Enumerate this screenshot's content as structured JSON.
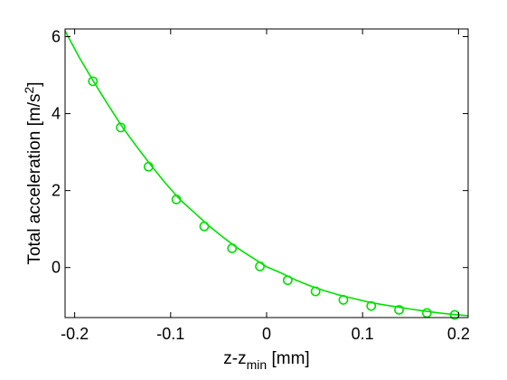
{
  "chart_data": {
    "type": "line",
    "title": "",
    "xlabel": {
      "main": "z-z",
      "subscript": "min",
      "suffix": " [mm]"
    },
    "ylabel": {
      "prefix": "Total acceleration [m/s",
      "superscript": "2",
      "suffix": "]"
    },
    "xlim": [
      -0.21,
      0.21
    ],
    "ylim": [
      -1.3,
      6.2
    ],
    "x_ticks": [
      {
        "value": -0.2,
        "label": "-0.2"
      },
      {
        "value": -0.1,
        "label": "-0.1"
      },
      {
        "value": 0,
        "label": "0"
      },
      {
        "value": 0.1,
        "label": "0.1"
      },
      {
        "value": 0.2,
        "label": "0.2"
      }
    ],
    "y_ticks": [
      {
        "value": 0,
        "label": "0"
      },
      {
        "value": 2,
        "label": "2"
      },
      {
        "value": 4,
        "label": "4"
      },
      {
        "value": 6,
        "label": "6"
      }
    ],
    "grid": false,
    "legend": "none",
    "series": [
      {
        "style": "line",
        "color": "#00e000",
        "x": [
          -0.21,
          -0.195,
          -0.18,
          -0.165,
          -0.15,
          -0.135,
          -0.12,
          -0.105,
          -0.09,
          -0.075,
          -0.06,
          -0.045,
          -0.03,
          -0.015,
          0.0,
          0.015,
          0.03,
          0.045,
          0.06,
          0.075,
          0.09,
          0.105,
          0.12,
          0.135,
          0.15,
          0.165,
          0.18,
          0.195,
          0.21
        ],
        "y": [
          6.15,
          5.45,
          4.82,
          4.22,
          3.64,
          3.13,
          2.64,
          2.18,
          1.76,
          1.42,
          1.08,
          0.78,
          0.5,
          0.26,
          0.02,
          -0.14,
          -0.32,
          -0.47,
          -0.6,
          -0.71,
          -0.8,
          -0.89,
          -0.96,
          -1.02,
          -1.08,
          -1.13,
          -1.18,
          -1.22,
          -1.25
        ]
      },
      {
        "style": "markers",
        "marker": "circle",
        "color": "#00e000",
        "x": [
          -0.181,
          -0.152,
          -0.123,
          -0.094,
          -0.065,
          -0.036,
          -0.007,
          0.022,
          0.051,
          0.08,
          0.109,
          0.138,
          0.167,
          0.196
        ],
        "y": [
          4.84,
          3.64,
          2.62,
          1.77,
          1.07,
          0.5,
          0.03,
          -0.33,
          -0.62,
          -0.84,
          -1.0,
          -1.1,
          -1.18,
          -1.23
        ]
      }
    ]
  }
}
